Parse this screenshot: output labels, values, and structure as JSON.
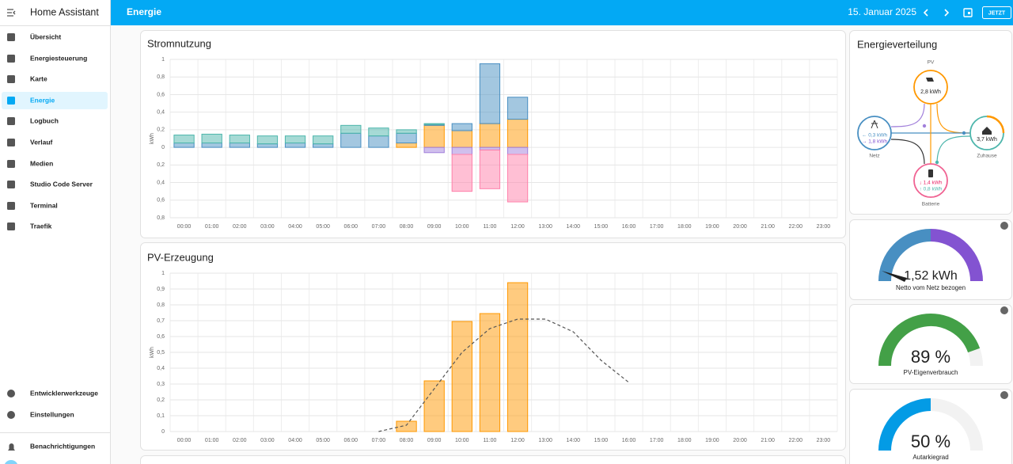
{
  "sidebar": {
    "title": "Home Assistant",
    "items": [
      "Übersicht",
      "Energiesteuerung",
      "Karte",
      "Energie",
      "Logbuch",
      "Verlauf",
      "Medien",
      "Studio Code Server",
      "Terminal",
      "Traefik"
    ],
    "active": 3,
    "bottom": [
      "Entwicklerwerkzeuge",
      "Einstellungen"
    ],
    "notifications": "Benachrichtigungen"
  },
  "header": {
    "title": "Energie",
    "date": "15. Januar 2025",
    "now_button": "JETZT"
  },
  "usage_chart": {
    "type": "bar",
    "stacked": true,
    "title": "Stromnutzung",
    "y_label": "kWh",
    "categories": [
      "00:00",
      "01:00",
      "02:00",
      "03:00",
      "04:00",
      "05:00",
      "06:00",
      "07:00",
      "08:00",
      "09:00",
      "10:00",
      "11:00",
      "12:00",
      "13:00",
      "14:00",
      "15:00",
      "16:00",
      "17:00",
      "18:00",
      "19:00",
      "20:00",
      "21:00",
      "22:00",
      "23:00"
    ],
    "series": [
      {
        "color": "#ff9800",
        "values": [
          0,
          0,
          0,
          0,
          0,
          0,
          0,
          0,
          0.05,
          0.25,
          0.19,
          0.27,
          0.32,
          null,
          null,
          null,
          null,
          null,
          null,
          null,
          null,
          null,
          null,
          null
        ]
      },
      {
        "color": "#488fc2",
        "values": [
          0.05,
          0.05,
          0.05,
          0.04,
          0.05,
          0.04,
          0.16,
          0.13,
          0.11,
          0.01,
          0.08,
          0.68,
          0.25,
          null,
          null,
          null,
          null,
          null,
          null,
          null,
          null,
          null,
          null,
          null
        ]
      },
      {
        "color": "#4db6ac",
        "values": [
          0.09,
          0.1,
          0.09,
          0.09,
          0.08,
          0.09,
          0.09,
          0.09,
          0.04,
          0.01,
          0,
          0,
          0,
          null,
          null,
          null,
          null,
          null,
          null,
          null,
          null,
          null,
          null,
          null
        ]
      },
      {
        "color": "#a280db",
        "values": [
          0,
          0,
          0,
          0,
          0,
          0,
          0,
          0,
          0,
          -0.06,
          -0.08,
          -0.03,
          -0.08,
          null,
          null,
          null,
          null,
          null,
          null,
          null,
          null,
          null,
          null,
          null
        ]
      },
      {
        "color": "#ff80aa",
        "values": [
          0,
          0,
          0,
          0,
          0,
          0,
          0,
          0,
          0,
          0,
          -0.42,
          -0.44,
          -0.54,
          null,
          null,
          null,
          null,
          null,
          null,
          null,
          null,
          null,
          null,
          null
        ]
      }
    ],
    "ylim": [
      -0.8,
      1
    ],
    "yticks": [
      {
        "value": -0.8,
        "label": "0,8"
      },
      {
        "value": -0.6,
        "label": "0,6"
      },
      {
        "value": -0.4,
        "label": "0,4"
      },
      {
        "value": -0.2,
        "label": "0,2"
      },
      0,
      {
        "value": 0.2,
        "label": "0,2"
      },
      {
        "value": 0.4,
        "label": "0,4"
      },
      {
        "value": 0.6,
        "label": "0,6"
      },
      {
        "value": 0.8,
        "label": "0,8"
      },
      1
    ],
    "grid": true
  },
  "pv_chart": {
    "type": "bar",
    "title": "PV-Erzeugung",
    "y_label": "kWh",
    "categories": [
      "00:00",
      "01:00",
      "02:00",
      "03:00",
      "04:00",
      "05:00",
      "06:00",
      "07:00",
      "08:00",
      "09:00",
      "10:00",
      "11:00",
      "12:00",
      "13:00",
      "14:00",
      "15:00",
      "16:00",
      "17:00",
      "18:00",
      "19:00",
      "20:00",
      "21:00",
      "22:00",
      "23:00"
    ],
    "series": [
      {
        "color": "#ff9800",
        "values": [
          null,
          null,
          null,
          null,
          null,
          null,
          null,
          null,
          0.065,
          0.32,
          0.695,
          0.745,
          0.94,
          null,
          null,
          null,
          null,
          null,
          null,
          null,
          null,
          null,
          null,
          null
        ]
      },
      {
        "type": "line",
        "style": "dashed",
        "color": "#555555",
        "values": [
          null,
          null,
          null,
          null,
          null,
          null,
          null,
          0,
          0.04,
          0.27,
          0.5,
          0.65,
          0.71,
          0.71,
          0.63,
          0.45,
          0.31,
          null,
          null,
          null,
          null,
          null,
          null,
          null
        ]
      }
    ],
    "ylim": [
      0,
      1
    ],
    "yticks": [
      0,
      {
        "value": 0.1,
        "label": "0,1"
      },
      {
        "value": 0.2,
        "label": "0,2"
      },
      {
        "value": 0.3,
        "label": "0,3"
      },
      {
        "value": 0.4,
        "label": "0,4"
      },
      {
        "value": 0.5,
        "label": "0,5"
      },
      {
        "value": 0.6,
        "label": "0,6"
      },
      {
        "value": 0.7,
        "label": "0,7"
      },
      {
        "value": 0.8,
        "label": "0,8"
      },
      {
        "value": 0.9,
        "label": "0,9"
      },
      1
    ],
    "grid": true
  },
  "distribution": {
    "title": "Energieverteilung",
    "pv": {
      "label": "PV",
      "value": "2,8 kWh"
    },
    "grid": {
      "label": "Netz",
      "lines": [
        "← 0,3 kWh",
        "→ 1,8 kWh"
      ]
    },
    "home": {
      "label": "Zuhause",
      "value": "3,7 kWh"
    },
    "battery": {
      "label": "Batterie",
      "lines": [
        "↓ 1,4 kWh",
        "↑ 0,8 kWh"
      ]
    }
  },
  "gauges": [
    {
      "label": "1,52 kWh",
      "name": "Netto vom Netz bezogen"
    },
    {
      "value": 89,
      "label": "89 %",
      "name": "PV-Eigenverbrauch",
      "color": "#43a047"
    },
    {
      "value": 50,
      "label": "50 %",
      "name": "Autarkiegrad",
      "color": "#039be5"
    }
  ]
}
